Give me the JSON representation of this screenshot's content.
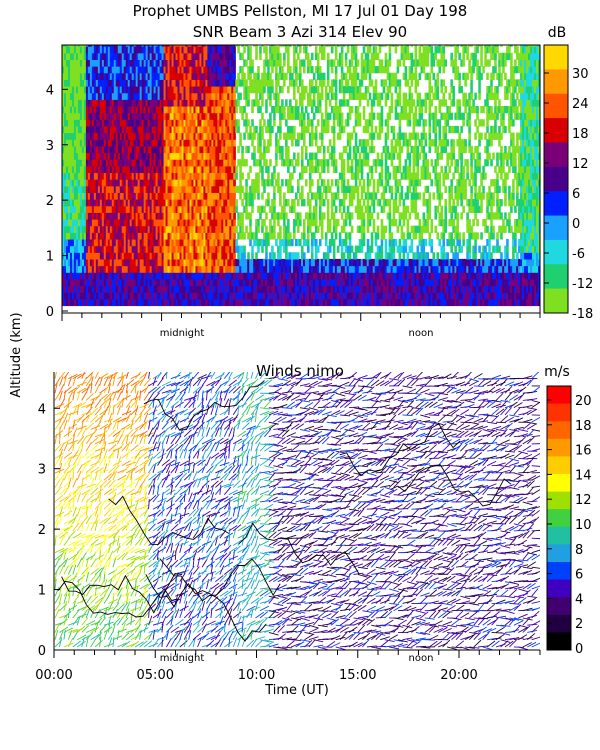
{
  "title_line1": "Prophet  UMBS Pellston, MI  17 Jul 01 Day 198",
  "title_line2": "SNR Beam 3 Azi 314 Elev 90",
  "y_axis_label": "Altitude (km)",
  "x_axis_label": "Time (UT)",
  "time_markers": {
    "midnight": "midnight",
    "noon": "noon"
  },
  "chart_data": [
    {
      "type": "heatmap",
      "title": "SNR Beam 3 Azi 314 Elev 90",
      "xlabel": "",
      "ylabel": "Altitude (km)",
      "x_range_hours": [
        0,
        24
      ],
      "ylim": [
        0,
        4.8
      ],
      "y_ticks": [
        "0",
        "1",
        "2",
        "3",
        "4"
      ],
      "colorbar": {
        "unit": "dB",
        "ticks": [
          "30",
          "24",
          "18",
          "12",
          "6",
          "0",
          "-6",
          "-12",
          "-18"
        ],
        "colors": [
          "#ffd800",
          "#ff9900",
          "#ff5500",
          "#d80000",
          "#7a0078",
          "#48008a",
          "#0020ff",
          "#1aa0ff",
          "#20d8e0",
          "#20d070",
          "#7ee020"
        ]
      },
      "annotations": [
        "midnight",
        "noon"
      ]
    },
    {
      "type": "scatter",
      "subtype": "wind barbs",
      "title": "Winds nimo",
      "xlabel": "Time (UT)",
      "ylabel": "Altitude (km)",
      "x_ticks": [
        "00:00",
        "05:00",
        "10:00",
        "15:00",
        "20:00"
      ],
      "x_range_hours": [
        0,
        24
      ],
      "ylim": [
        0,
        4.6
      ],
      "y_ticks": [
        "0",
        "1",
        "2",
        "3",
        "4"
      ],
      "colorbar": {
        "unit": "m/s",
        "ticks": [
          "20",
          "18",
          "16",
          "14",
          "12",
          "10",
          "8",
          "6",
          "4",
          "2",
          "0"
        ],
        "colors": [
          "#ff0000",
          "#ff3300",
          "#ff6600",
          "#ff9900",
          "#ffcc00",
          "#ffff00",
          "#a0e000",
          "#40d040",
          "#20c0a0",
          "#20a0e0",
          "#0040ff",
          "#4000c0",
          "#400070",
          "#200040",
          "#000000"
        ]
      },
      "annotations": [
        "midnight",
        "noon"
      ]
    }
  ]
}
